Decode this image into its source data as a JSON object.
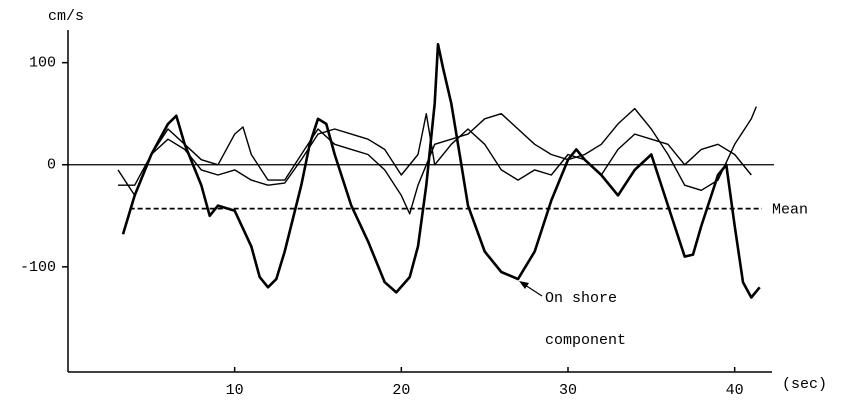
{
  "chart_data": {
    "type": "line",
    "y_label": "cm/s",
    "x_label": "(sec)",
    "xlim": [
      0,
      42
    ],
    "xticks": [
      10,
      20,
      30,
      40
    ],
    "ylim": [
      -203,
      132
    ],
    "yticks": [
      100,
      0,
      -100
    ],
    "mean": {
      "label": "Mean",
      "value": -43
    },
    "annotation": [
      "On shore",
      "component"
    ],
    "series": [
      {
        "color": "#000000",
        "width": 2.6,
        "x": [
          3.3,
          4,
          5,
          6,
          6.5,
          7,
          8,
          8.5,
          9,
          10,
          11,
          11.5,
          12,
          12.5,
          13,
          14,
          14.5,
          15,
          15.5,
          16,
          17,
          18,
          19,
          19.7,
          20.5,
          21,
          21.5,
          22,
          22.2,
          22.5,
          23,
          23.5,
          24,
          25,
          26,
          27,
          28,
          29,
          30,
          30.5,
          31,
          32,
          33,
          34,
          35,
          36,
          37,
          37.5,
          38,
          39,
          39.5,
          40,
          40.5,
          41,
          41.5
        ],
        "values": [
          -68,
          -30,
          10,
          40,
          48,
          20,
          -20,
          -50,
          -40,
          -45,
          -80,
          -110,
          -120,
          -112,
          -85,
          -20,
          20,
          45,
          40,
          10,
          -40,
          -75,
          -115,
          -125,
          -110,
          -80,
          -20,
          60,
          118,
          95,
          60,
          10,
          -40,
          -85,
          -105,
          -112,
          -85,
          -35,
          5,
          15,
          5,
          -10,
          -30,
          -5,
          10,
          -40,
          -90,
          -88,
          -60,
          -10,
          0,
          -60,
          -115,
          -130,
          -120
        ]
      },
      {
        "color": "#000000",
        "width": 1.4,
        "x": [
          3,
          4,
          5,
          6,
          7,
          8,
          9,
          10,
          10.5,
          11,
          12,
          13,
          14,
          15,
          16,
          17,
          18,
          19,
          20,
          20.5,
          21,
          22,
          23,
          24,
          25,
          26,
          27,
          28,
          29,
          30,
          31,
          32,
          33,
          34,
          35,
          36,
          37,
          38,
          39,
          40,
          41,
          41.3
        ],
        "values": [
          -5,
          -30,
          10,
          35,
          20,
          5,
          0,
          30,
          37,
          10,
          -15,
          -15,
          10,
          35,
          20,
          15,
          10,
          -5,
          -30,
          -48,
          -20,
          20,
          25,
          30,
          45,
          50,
          35,
          20,
          10,
          5,
          10,
          20,
          40,
          55,
          35,
          10,
          -20,
          -25,
          -15,
          20,
          45,
          57
        ]
      },
      {
        "color": "#000000",
        "width": 1.4,
        "x": [
          3,
          4,
          5,
          6,
          7,
          8,
          9,
          10,
          11,
          12,
          13,
          14,
          15,
          16,
          17,
          18,
          19,
          20,
          21,
          21.5,
          22,
          23,
          24,
          25,
          26,
          27,
          28,
          29,
          30,
          31,
          32,
          33,
          34,
          35,
          36,
          37,
          38,
          39,
          40,
          41
        ],
        "values": [
          -20,
          -20,
          10,
          25,
          15,
          -5,
          -10,
          -5,
          -15,
          -20,
          -18,
          5,
          30,
          35,
          30,
          25,
          15,
          -10,
          10,
          50,
          0,
          20,
          35,
          20,
          -5,
          -15,
          -5,
          -10,
          10,
          5,
          -10,
          15,
          30,
          25,
          20,
          0,
          15,
          20,
          10,
          -10
        ]
      }
    ]
  }
}
